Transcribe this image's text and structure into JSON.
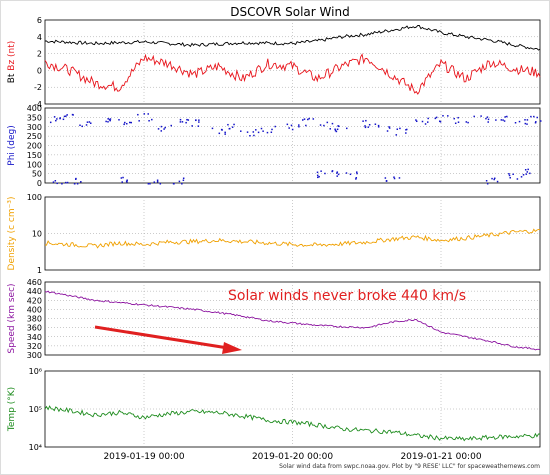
{
  "title": "DSCOVR Solar Wind",
  "annotation": "Solar winds never broke 440 km/s",
  "footer": "Solar wind data from swpc.noaa.gov. Plot by \"9 RESE' LLC\" for spaceweathernews.com",
  "colors": {
    "bt": "#000000",
    "bz": "#e8141b",
    "phi": "#1414c8",
    "density": "#f0a000",
    "speed": "#8c14a0",
    "temp": "#1e8c1e",
    "annotation": "#e02020",
    "grid": "#9a9a9a"
  },
  "chart_data": [
    {
      "type": "line",
      "panel": "magnetic-field",
      "title": "DSCOVR Solar Wind",
      "ylabel_parts": [
        "Bt",
        "Bz (nt)"
      ],
      "ylim": [
        -4,
        6
      ],
      "yticks": [
        -4,
        -2,
        0,
        2,
        4,
        6
      ],
      "series": [
        {
          "name": "Bt",
          "x": [
            0,
            0.1,
            0.2,
            0.3,
            0.4,
            0.5,
            0.55,
            0.6,
            0.65,
            0.7,
            0.75,
            0.8,
            0.85,
            0.9,
            0.95,
            1.0
          ],
          "values": [
            3.5,
            3.2,
            3.4,
            3.0,
            3.3,
            3.2,
            3.5,
            4.0,
            4.3,
            4.8,
            5.3,
            4.5,
            4.0,
            3.6,
            3.0,
            2.5
          ]
        },
        {
          "name": "Bz",
          "x": [
            0,
            0.05,
            0.1,
            0.15,
            0.2,
            0.25,
            0.3,
            0.35,
            0.4,
            0.45,
            0.5,
            0.55,
            0.6,
            0.65,
            0.7,
            0.75,
            0.8,
            0.85,
            0.9,
            0.95,
            1.0
          ],
          "values": [
            1.0,
            0.0,
            -1.5,
            -2.0,
            1.5,
            0.8,
            -0.5,
            0.5,
            -1.0,
            0.8,
            0.5,
            -1.0,
            0.5,
            1.5,
            -0.5,
            -2.5,
            0.8,
            -1.0,
            1.0,
            0.2,
            -0.3
          ]
        }
      ]
    },
    {
      "type": "scatter",
      "panel": "phi",
      "ylabel": "Phi (deg)",
      "ylim": [
        0,
        400
      ],
      "yticks": [
        0,
        50,
        100,
        150,
        200,
        250,
        300,
        350,
        400
      ],
      "series": [
        {
          "name": "Phi",
          "points": [
            [
              0.02,
              340
            ],
            [
              0.05,
              350
            ],
            [
              0.08,
              320
            ],
            [
              0.12,
              345
            ],
            [
              0.16,
              330
            ],
            [
              0.2,
              355
            ],
            [
              0.24,
              300
            ],
            [
              0.28,
              340
            ],
            [
              0.31,
              320
            ],
            [
              0.35,
              280
            ],
            [
              0.38,
              300
            ],
            [
              0.42,
              270
            ],
            [
              0.45,
              290
            ],
            [
              0.5,
              300
            ],
            [
              0.53,
              330
            ],
            [
              0.57,
              310
            ],
            [
              0.6,
              290
            ],
            [
              0.64,
              320
            ],
            [
              0.68,
              300
            ],
            [
              0.72,
              280
            ],
            [
              0.76,
              330
            ],
            [
              0.8,
              350
            ],
            [
              0.84,
              340
            ],
            [
              0.88,
              345
            ],
            [
              0.92,
              350
            ],
            [
              0.96,
              330
            ],
            [
              0.99,
              345
            ],
            [
              0.03,
              15
            ],
            [
              0.07,
              10
            ],
            [
              0.15,
              20
            ],
            [
              0.22,
              8
            ],
            [
              0.27,
              12
            ],
            [
              0.55,
              50
            ],
            [
              0.58,
              60
            ],
            [
              0.62,
              45
            ],
            [
              0.7,
              25
            ],
            [
              0.9,
              10
            ],
            [
              0.95,
              40
            ],
            [
              0.98,
              60
            ]
          ]
        }
      ]
    },
    {
      "type": "line",
      "panel": "density",
      "ylabel": "Density (c cm⁻³)",
      "yscale": "log",
      "ylim": [
        1,
        100
      ],
      "yticks": [
        1,
        10,
        100
      ],
      "ytick_labels": [
        "1",
        "10",
        "100"
      ],
      "series": [
        {
          "name": "Density",
          "x": [
            0,
            0.05,
            0.1,
            0.15,
            0.2,
            0.25,
            0.3,
            0.35,
            0.4,
            0.45,
            0.5,
            0.55,
            0.6,
            0.65,
            0.7,
            0.75,
            0.8,
            0.85,
            0.9,
            0.95,
            1.0
          ],
          "values": [
            5.5,
            5.0,
            4.5,
            5.5,
            5.0,
            5.8,
            6.0,
            6.5,
            6.0,
            5.5,
            5.0,
            4.8,
            5.2,
            5.8,
            7.0,
            8.0,
            6.5,
            7.5,
            9.0,
            11.0,
            12.0
          ]
        }
      ]
    },
    {
      "type": "line",
      "panel": "speed",
      "ylabel": "Speed (km sec)",
      "ylim": [
        300,
        460
      ],
      "yticks": [
        300,
        320,
        340,
        360,
        380,
        400,
        420,
        440,
        460
      ],
      "series": [
        {
          "name": "Speed",
          "x": [
            0,
            0.05,
            0.1,
            0.15,
            0.2,
            0.25,
            0.3,
            0.35,
            0.4,
            0.45,
            0.5,
            0.55,
            0.6,
            0.65,
            0.7,
            0.75,
            0.8,
            0.85,
            0.9,
            0.95,
            1.0
          ],
          "values": [
            440,
            430,
            420,
            415,
            410,
            405,
            400,
            393,
            385,
            375,
            370,
            365,
            362,
            360,
            372,
            378,
            350,
            340,
            330,
            318,
            312
          ]
        }
      ]
    },
    {
      "type": "line",
      "panel": "temperature",
      "ylabel": "Temp (°K)",
      "yscale": "log",
      "ylim": [
        10000,
        1000000
      ],
      "yticks": [
        10000,
        100000,
        1000000
      ],
      "ytick_labels": [
        "10⁴",
        "10⁵",
        "10⁶"
      ],
      "series": [
        {
          "name": "Temp",
          "x": [
            0,
            0.05,
            0.1,
            0.15,
            0.2,
            0.25,
            0.3,
            0.35,
            0.4,
            0.45,
            0.5,
            0.55,
            0.6,
            0.65,
            0.7,
            0.75,
            0.8,
            0.85,
            0.9,
            0.95,
            1.0
          ],
          "values": [
            110000,
            90000,
            70000,
            80000,
            60000,
            75000,
            85000,
            80000,
            65000,
            50000,
            45000,
            38000,
            30000,
            27000,
            25000,
            20000,
            17000,
            16000,
            18000,
            19000,
            20000
          ]
        }
      ]
    }
  ],
  "x_axis": {
    "tick_labels": [
      "2019-01-19 00:00",
      "2019-01-20 00:00",
      "2019-01-21 00:00"
    ],
    "tick_positions": [
      0.2,
      0.5,
      0.8
    ]
  }
}
